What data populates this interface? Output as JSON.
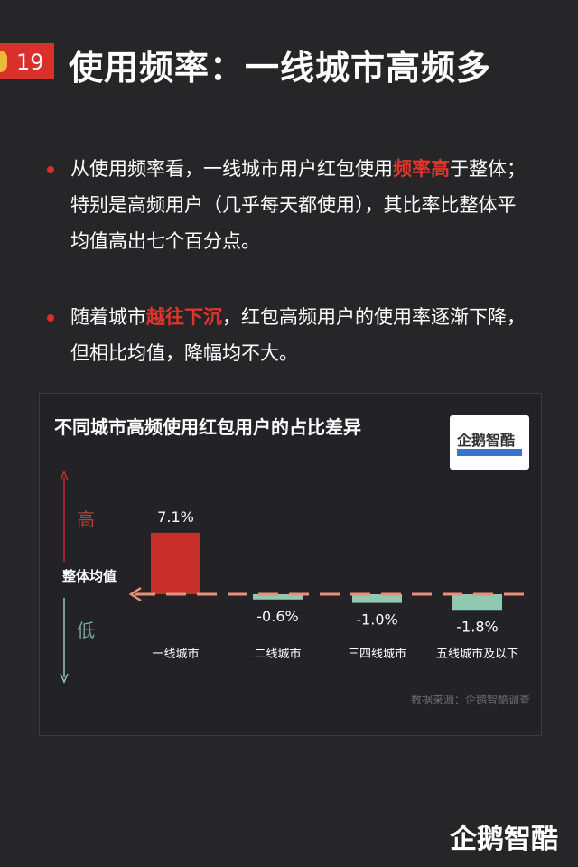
{
  "header": {
    "page_number": "19",
    "title": "使用频率：一线城市高频多"
  },
  "bullets": [
    {
      "before": "从使用频率看，一线城市用户红包使用",
      "highlight": "频率高",
      "after": "于整体；特别是高频用户（几乎每天都使用），其比率比整体平均值高出七个百分点。"
    },
    {
      "before": "随着城市",
      "highlight": "越往下沉",
      "after": "，红包高频用户的使用率逐渐下降，但相比均值，降幅均不大。"
    }
  ],
  "chart_logo": "企鹅智酷",
  "source": "数据来源：企鹅智酷调查",
  "footer_logo": "企鹅智酷",
  "colors": {
    "background": "#262528",
    "accent": "#d9302b",
    "positive": "#c9302c",
    "negative": "#8fc9b1",
    "baseline": "#e8907a"
  },
  "chart_data": {
    "type": "bar",
    "title": "不同城市高频使用红包用户的占比差异",
    "categories": [
      "一线城市",
      "二线城市",
      "三四线城市",
      "五线城市及以下"
    ],
    "values": [
      7.1,
      -0.6,
      -1.0,
      -1.8
    ],
    "value_labels": [
      "7.1%",
      "-0.6%",
      "-1.0%",
      "-1.8%"
    ],
    "baseline_label": "整体均值",
    "up_label": "高",
    "down_label": "低",
    "grid": false
  }
}
